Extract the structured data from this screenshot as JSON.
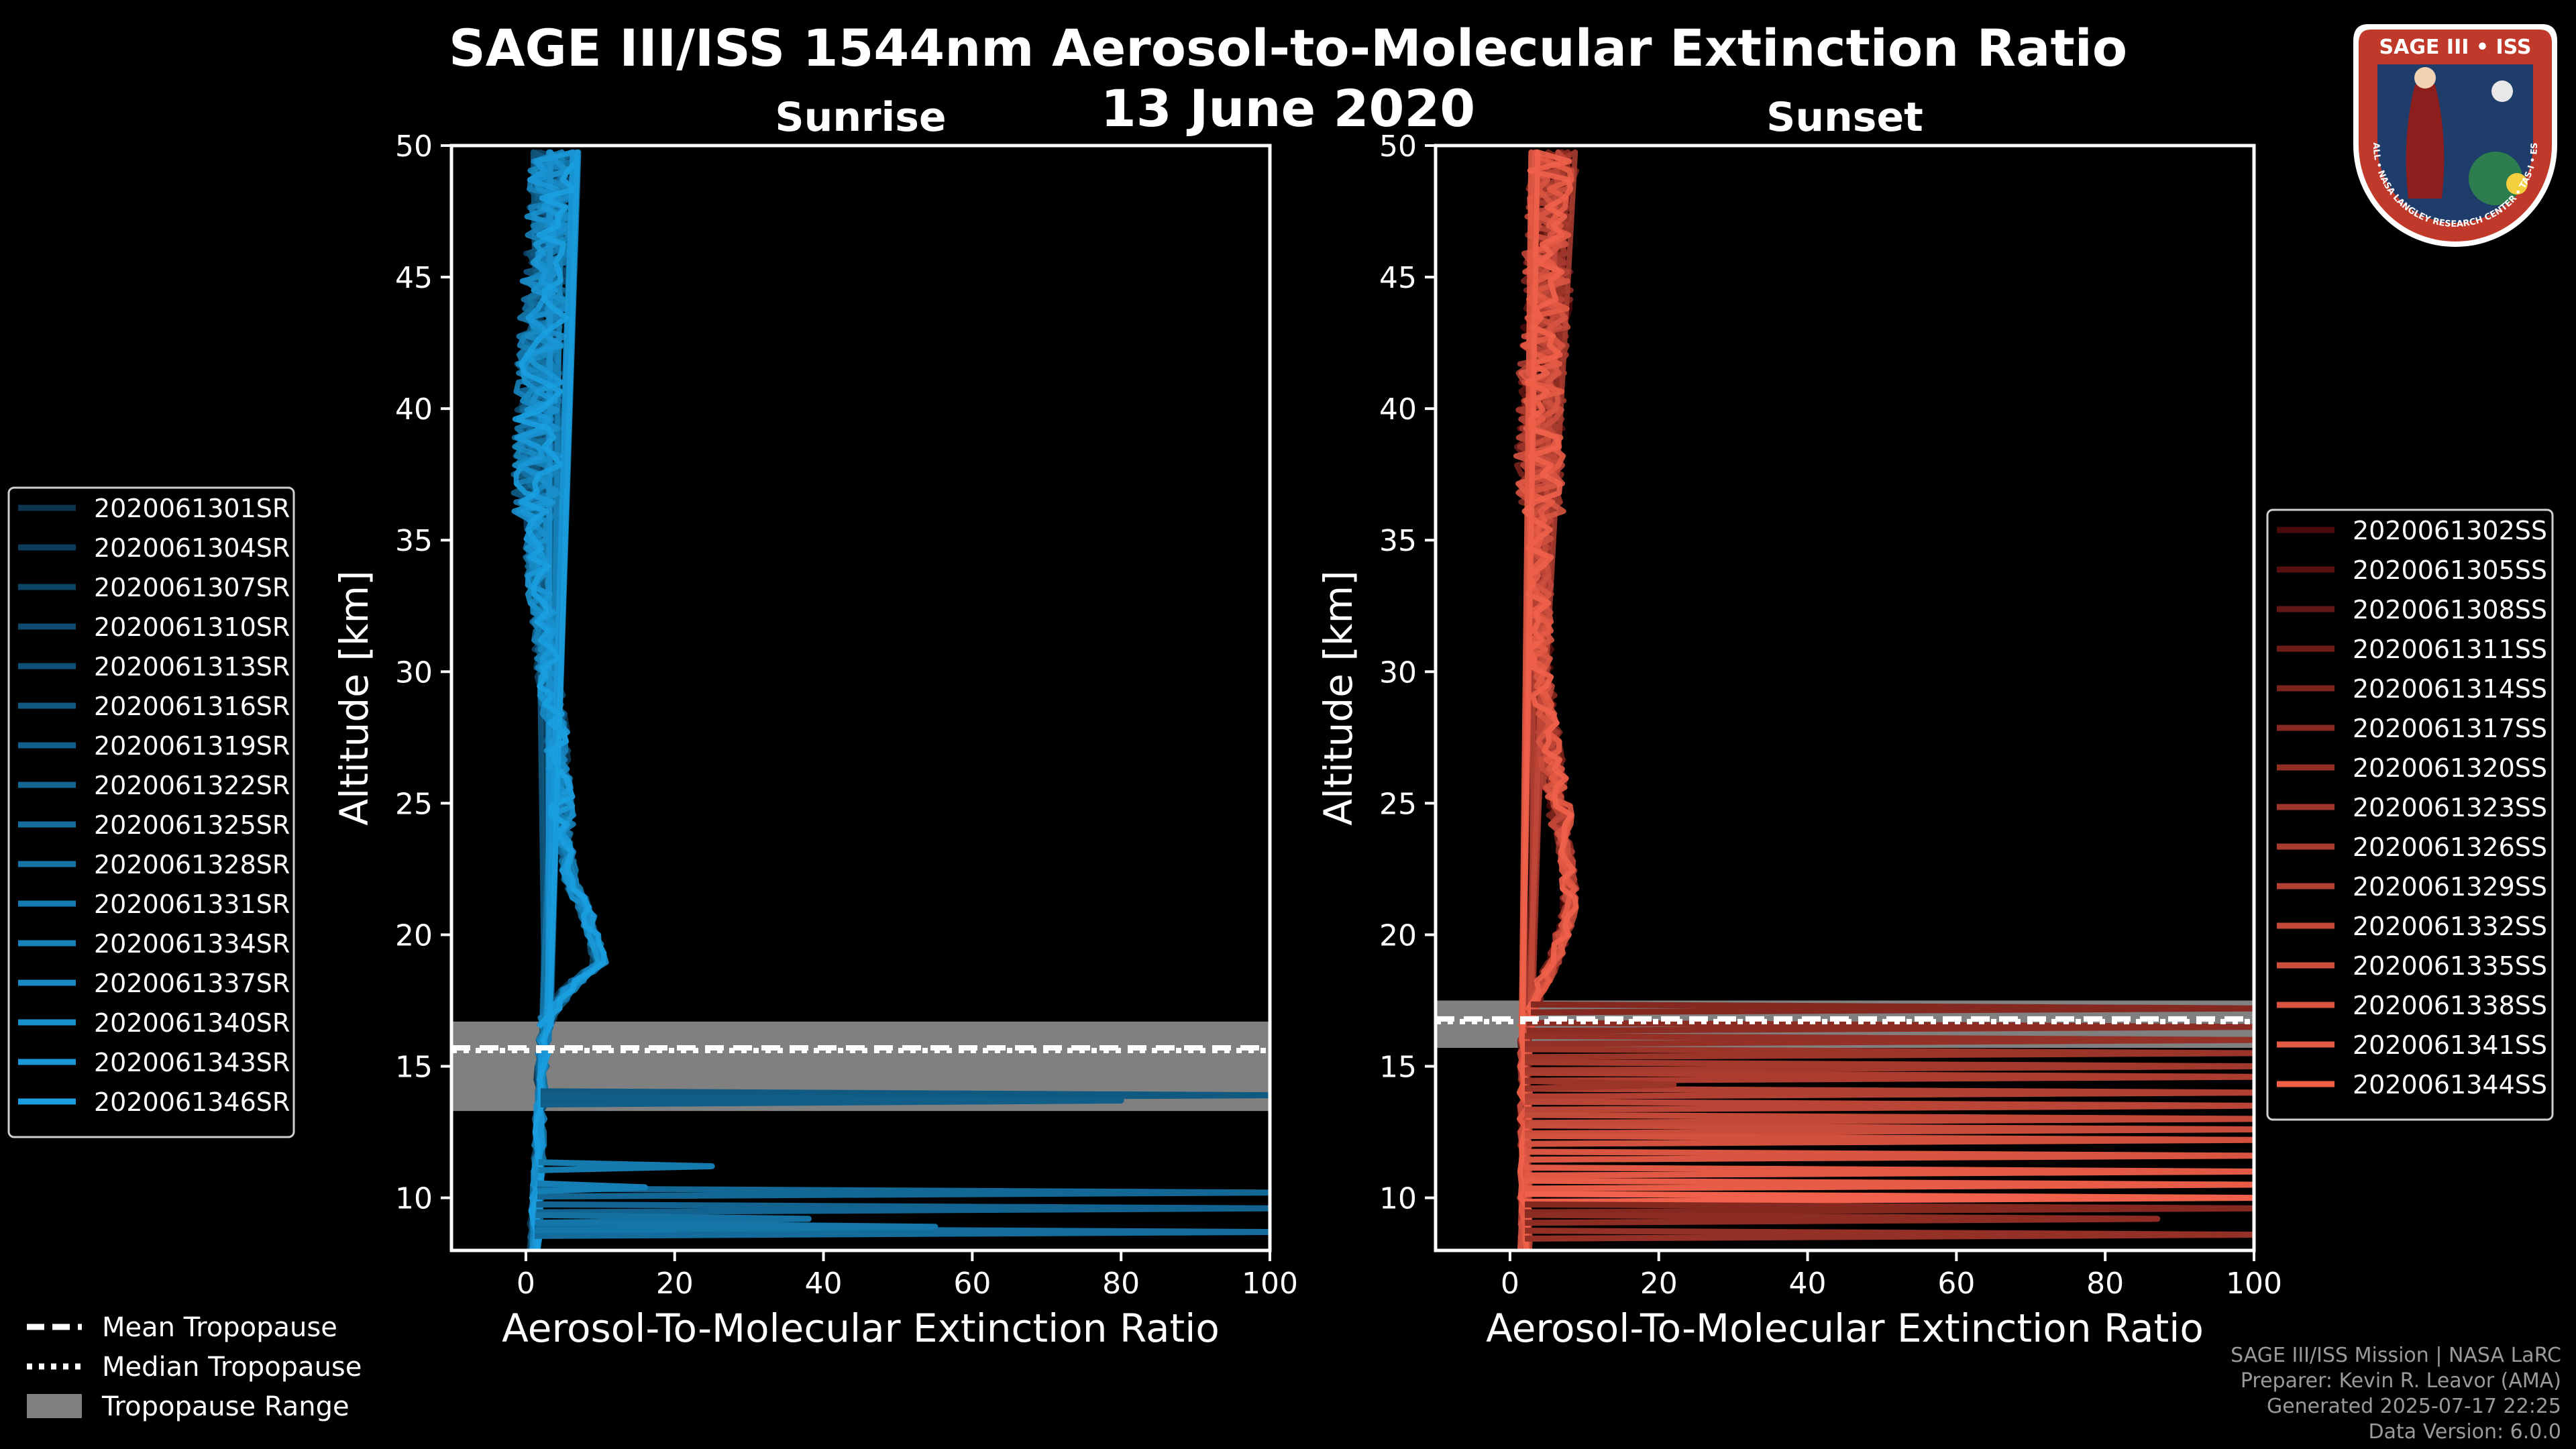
{
  "header": {
    "title_line1": "SAGE III/ISS 1544nm Aerosol-to-Molecular Extinction Ratio",
    "title_line2": "13 June 2020"
  },
  "logo": {
    "top_text": "SAGE III • ISS",
    "ring_text": "BALL • NASA LANGLEY RESEARCH CENTER • TAS-I • ESA",
    "colors": {
      "ring": "#c0392b",
      "inner": "#1f3d6b",
      "text": "#ffffff"
    }
  },
  "chart_data": [
    {
      "type": "line",
      "panel": "sunrise",
      "title": "Sunrise",
      "xlabel": "Aerosol-To-Molecular Extinction Ratio",
      "ylabel": "Altitude [km]",
      "xlim": [
        -10,
        100
      ],
      "ylim": [
        8,
        50
      ],
      "xticks": [
        0,
        20,
        40,
        60,
        80,
        100
      ],
      "yticks": [
        10,
        15,
        20,
        25,
        30,
        35,
        40,
        45,
        50
      ],
      "grid": false,
      "legend_position": "left",
      "tropopause": {
        "mean_km": 15.7,
        "median_km": 15.6,
        "range_km": [
          13.3,
          16.7
        ]
      },
      "color_dark": "#0b3550",
      "color_light": "#1a9ee0",
      "series_names": [
        "2020061301SR",
        "2020061304SR",
        "2020061307SR",
        "2020061310SR",
        "2020061313SR",
        "2020061316SR",
        "2020061319SR",
        "2020061322SR",
        "2020061325SR",
        "2020061328SR",
        "2020061331SR",
        "2020061334SR",
        "2020061337SR",
        "2020061340SR",
        "2020061343SR",
        "2020061346SR"
      ],
      "central_profile": [
        [
          8,
          1
        ],
        [
          10,
          1.5
        ],
        [
          12,
          1.8
        ],
        [
          14,
          2
        ],
        [
          16,
          2.4
        ],
        [
          17,
          3
        ],
        [
          18,
          6
        ],
        [
          19,
          10
        ],
        [
          20,
          9
        ],
        [
          21,
          8
        ],
        [
          22,
          6
        ],
        [
          24,
          5
        ],
        [
          26,
          4.5
        ],
        [
          28,
          4
        ],
        [
          30,
          3
        ],
        [
          32,
          2.2
        ],
        [
          34,
          1.5
        ],
        [
          36,
          1.5
        ],
        [
          38,
          1.5
        ],
        [
          40,
          1.8
        ],
        [
          42,
          2
        ],
        [
          44,
          2.5
        ],
        [
          46,
          3
        ],
        [
          48,
          3.5
        ],
        [
          50,
          4
        ]
      ],
      "low_spikes": [
        [
          13.9,
          100
        ],
        [
          13.7,
          80
        ],
        [
          9.6,
          100
        ],
        [
          10.2,
          100
        ],
        [
          8.7,
          100
        ],
        [
          9.2,
          38
        ],
        [
          8.9,
          55
        ],
        [
          11.2,
          25
        ],
        [
          10.4,
          16
        ]
      ]
    },
    {
      "type": "line",
      "panel": "sunset",
      "title": "Sunset",
      "xlabel": "Aerosol-To-Molecular Extinction Ratio",
      "ylabel": "Altitude [km]",
      "xlim": [
        -10,
        100
      ],
      "ylim": [
        8,
        50
      ],
      "xticks": [
        0,
        20,
        40,
        60,
        80,
        100
      ],
      "yticks": [
        10,
        15,
        20,
        25,
        30,
        35,
        40,
        45,
        50
      ],
      "grid": false,
      "legend_position": "right",
      "tropopause": {
        "mean_km": 16.8,
        "median_km": 16.7,
        "range_km": [
          15.7,
          17.5
        ]
      },
      "color_dark": "#4a0a0a",
      "color_light": "#f0604a",
      "series_names": [
        "2020061302SS",
        "2020061305SS",
        "2020061308SS",
        "2020061311SS",
        "2020061314SS",
        "2020061317SS",
        "2020061320SS",
        "2020061323SS",
        "2020061326SS",
        "2020061329SS",
        "2020061332SS",
        "2020061335SS",
        "2020061338SS",
        "2020061341SS",
        "2020061344SS"
      ],
      "central_profile": [
        [
          8,
          2
        ],
        [
          10,
          2
        ],
        [
          12,
          2
        ],
        [
          14,
          2
        ],
        [
          16,
          2
        ],
        [
          17,
          2.5
        ],
        [
          18,
          4
        ],
        [
          19,
          6
        ],
        [
          20,
          7
        ],
        [
          21,
          8
        ],
        [
          22,
          8
        ],
        [
          24,
          7
        ],
        [
          26,
          6
        ],
        [
          28,
          5
        ],
        [
          30,
          4
        ],
        [
          32,
          4
        ],
        [
          34,
          4
        ],
        [
          36,
          4
        ],
        [
          38,
          4
        ],
        [
          40,
          4
        ],
        [
          42,
          4.5
        ],
        [
          44,
          5
        ],
        [
          46,
          5
        ],
        [
          48,
          5.5
        ],
        [
          50,
          6
        ]
      ],
      "low_spikes": [
        [
          17.2,
          100
        ],
        [
          16.5,
          100
        ],
        [
          16.0,
          100
        ],
        [
          15.5,
          100
        ],
        [
          15.0,
          100
        ],
        [
          14.6,
          100
        ],
        [
          14.0,
          100
        ],
        [
          13.5,
          100
        ],
        [
          13.0,
          100
        ],
        [
          12.6,
          100
        ],
        [
          12.2,
          100
        ],
        [
          11.6,
          100
        ],
        [
          11.0,
          100
        ],
        [
          10.5,
          100
        ],
        [
          10.0,
          100
        ],
        [
          9.6,
          100
        ],
        [
          9.2,
          87
        ],
        [
          8.6,
          100
        ],
        [
          14.3,
          22
        ]
      ]
    }
  ],
  "legend_common": {
    "mean_label": "Mean Tropopause",
    "median_label": "Median Tropopause",
    "range_label": "Tropopause Range",
    "range_color": "#808080"
  },
  "footer": {
    "line1": "SAGE III/ISS Mission | NASA LaRC",
    "line2": "Preparer: Kevin R. Leavor (AMA)",
    "line3": "Generated 2025-07-17 22:25",
    "line4": "Data Version: 6.0.0"
  }
}
